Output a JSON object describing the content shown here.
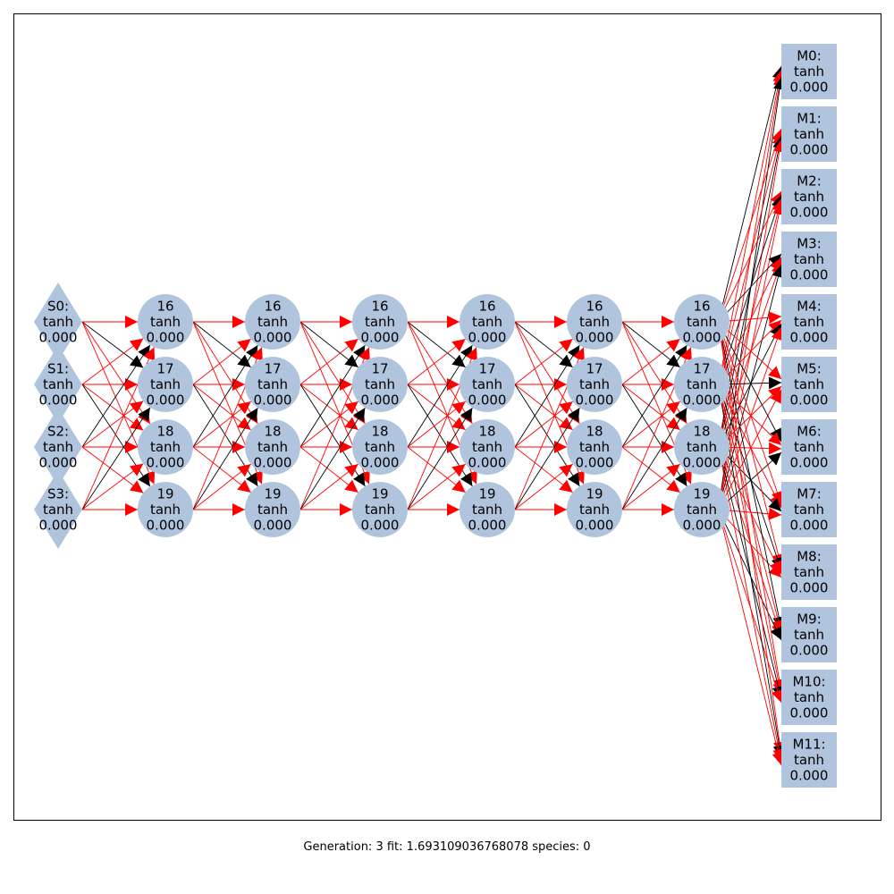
{
  "colors": {
    "node_fill": "#b0c4de",
    "edge_positive": "#ff0000",
    "edge_negative": "#000000",
    "frame": "#000000"
  },
  "diagram": {
    "sensors": [
      {
        "id": "S0:",
        "fn": "tanh",
        "value": "0.000"
      },
      {
        "id": "S1:",
        "fn": "tanh",
        "value": "0.000"
      },
      {
        "id": "S2:",
        "fn": "tanh",
        "value": "0.000"
      },
      {
        "id": "S3:",
        "fn": "tanh",
        "value": "0.000"
      }
    ],
    "hidden_layers": [
      [
        {
          "id": "16",
          "fn": "tanh",
          "value": "0.000"
        },
        {
          "id": "17",
          "fn": "tanh",
          "value": "0.000"
        },
        {
          "id": "18",
          "fn": "tanh",
          "value": "0.000"
        },
        {
          "id": "19",
          "fn": "tanh",
          "value": "0.000"
        }
      ],
      [
        {
          "id": "16",
          "fn": "tanh",
          "value": "0.000"
        },
        {
          "id": "17",
          "fn": "tanh",
          "value": "0.000"
        },
        {
          "id": "18",
          "fn": "tanh",
          "value": "0.000"
        },
        {
          "id": "19",
          "fn": "tanh",
          "value": "0.000"
        }
      ],
      [
        {
          "id": "16",
          "fn": "tanh",
          "value": "0.000"
        },
        {
          "id": "17",
          "fn": "tanh",
          "value": "0.000"
        },
        {
          "id": "18",
          "fn": "tanh",
          "value": "0.000"
        },
        {
          "id": "19",
          "fn": "tanh",
          "value": "0.000"
        }
      ],
      [
        {
          "id": "16",
          "fn": "tanh",
          "value": "0.000"
        },
        {
          "id": "17",
          "fn": "tanh",
          "value": "0.000"
        },
        {
          "id": "18",
          "fn": "tanh",
          "value": "0.000"
        },
        {
          "id": "19",
          "fn": "tanh",
          "value": "0.000"
        }
      ],
      [
        {
          "id": "16",
          "fn": "tanh",
          "value": "0.000"
        },
        {
          "id": "17",
          "fn": "tanh",
          "value": "0.000"
        },
        {
          "id": "18",
          "fn": "tanh",
          "value": "0.000"
        },
        {
          "id": "19",
          "fn": "tanh",
          "value": "0.000"
        }
      ],
      [
        {
          "id": "16",
          "fn": "tanh",
          "value": "0.000"
        },
        {
          "id": "17",
          "fn": "tanh",
          "value": "0.000"
        },
        {
          "id": "18",
          "fn": "tanh",
          "value": "0.000"
        },
        {
          "id": "19",
          "fn": "tanh",
          "value": "0.000"
        }
      ]
    ],
    "motors": [
      {
        "id": "M0:",
        "fn": "tanh",
        "value": "0.000"
      },
      {
        "id": "M1:",
        "fn": "tanh",
        "value": "0.000"
      },
      {
        "id": "M2:",
        "fn": "tanh",
        "value": "0.000"
      },
      {
        "id": "M3:",
        "fn": "tanh",
        "value": "0.000"
      },
      {
        "id": "M4:",
        "fn": "tanh",
        "value": "0.000"
      },
      {
        "id": "M5:",
        "fn": "tanh",
        "value": "0.000"
      },
      {
        "id": "M6:",
        "fn": "tanh",
        "value": "0.000"
      },
      {
        "id": "M7:",
        "fn": "tanh",
        "value": "0.000"
      },
      {
        "id": "M8:",
        "fn": "tanh",
        "value": "0.000"
      },
      {
        "id": "M9:",
        "fn": "tanh",
        "value": "0.000"
      },
      {
        "id": "M10:",
        "fn": "tanh",
        "value": "0.000"
      },
      {
        "id": "M11:",
        "fn": "tanh",
        "value": "0.000"
      }
    ]
  },
  "caption": "Generation: 3 fit: 1.693109036768078 species: 0"
}
